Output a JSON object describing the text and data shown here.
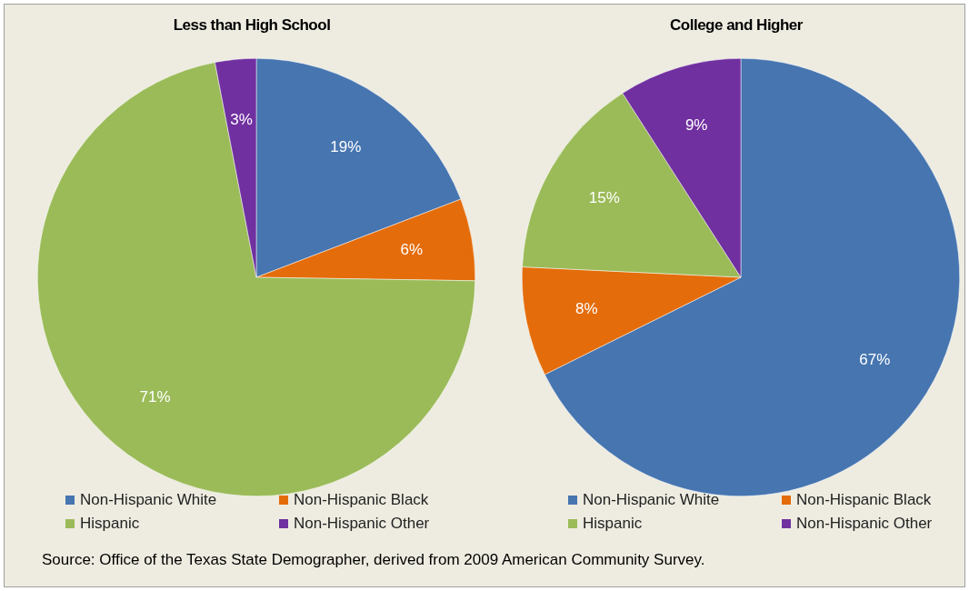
{
  "chart_data": [
    {
      "type": "pie",
      "title": "Less than High School",
      "categories": [
        "Non-Hispanic White",
        "Non-Hispanic Black",
        "Hispanic",
        "Non-Hispanic Other"
      ],
      "values": [
        19,
        6,
        71,
        3
      ],
      "colors": [
        "#4675b0",
        "#e46c0a",
        "#9bbb59",
        "#7030a0"
      ],
      "value_labels": [
        "19%",
        "6%",
        "71%",
        "3%"
      ],
      "legend": "bottom"
    },
    {
      "type": "pie",
      "title": "College and Higher",
      "categories": [
        "Non-Hispanic White",
        "Non-Hispanic Black",
        "Hispanic",
        "Non-Hispanic Other"
      ],
      "values": [
        67,
        8,
        15,
        9
      ],
      "colors": [
        "#4675b0",
        "#e46c0a",
        "#9bbb59",
        "#7030a0"
      ],
      "value_labels": [
        "67%",
        "8%",
        "15%",
        "9%"
      ],
      "legend": "bottom",
      "annotations": [
        "Source: Office of the Texas State Demographer, derived from 2009 American Community Survey."
      ]
    }
  ]
}
